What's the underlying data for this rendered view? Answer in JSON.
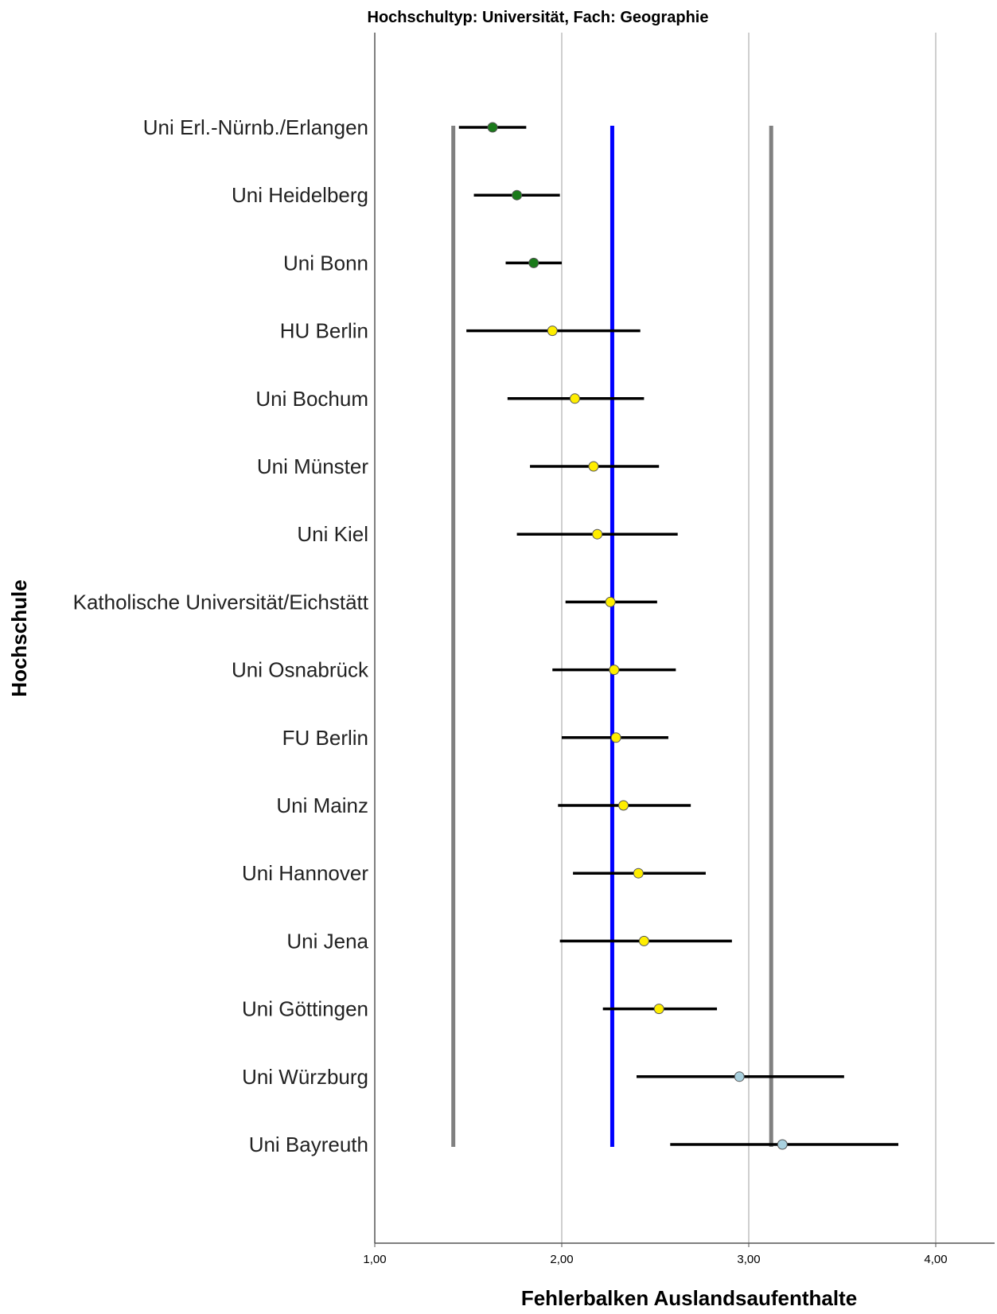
{
  "chart_data": {
    "type": "scatter",
    "subtype": "error-bar",
    "title": "Hochschultyp: Universität, Fach: Geographie",
    "xlabel": "Fehlerbalken Auslandsaufenthalte",
    "ylabel": "Hochschule",
    "xlim": [
      1.0,
      4.3
    ],
    "xticks": [
      1.0,
      2.0,
      3.0,
      4.0
    ],
    "xtick_labels": [
      "1,00",
      "2,00",
      "3,00",
      "4,00"
    ],
    "grid": "vertical",
    "legend": "none",
    "reference_lines": [
      {
        "x": 1.42,
        "color": "#808080"
      },
      {
        "x": 2.27,
        "color": "#0000ff"
      },
      {
        "x": 3.12,
        "color": "#808080"
      }
    ],
    "categories": [
      "Uni Erl.-Nürnb./Erlangen",
      "Uni Heidelberg",
      "Uni Bonn",
      "HU Berlin",
      "Uni Bochum",
      "Uni Münster",
      "Uni Kiel",
      "Katholische Universität/Eichstätt",
      "Uni Osnabrück",
      "FU Berlin",
      "Uni Mainz",
      "Uni Hannover",
      "Uni Jena",
      "Uni Göttingen",
      "Uni Würzburg",
      "Uni Bayreuth"
    ],
    "mean": [
      1.63,
      1.76,
      1.85,
      1.95,
      2.07,
      2.17,
      2.19,
      2.26,
      2.28,
      2.29,
      2.33,
      2.41,
      2.44,
      2.52,
      2.95,
      3.18
    ],
    "lower": [
      1.45,
      1.53,
      1.7,
      1.49,
      1.71,
      1.83,
      1.76,
      2.02,
      1.95,
      2.0,
      1.98,
      2.06,
      1.99,
      2.22,
      2.4,
      2.58
    ],
    "upper": [
      1.81,
      1.99,
      2.0,
      2.42,
      2.44,
      2.52,
      2.62,
      2.51,
      2.61,
      2.57,
      2.69,
      2.77,
      2.91,
      2.83,
      3.51,
      3.8
    ],
    "point_colors": [
      "#1a7a1a",
      "#1a7a1a",
      "#1a7a1a",
      "#ffee00",
      "#ffee00",
      "#ffee00",
      "#ffee00",
      "#ffee00",
      "#ffee00",
      "#ffee00",
      "#ffee00",
      "#ffee00",
      "#ffee00",
      "#ffee00",
      "#a9d1df",
      "#a9d1df"
    ]
  }
}
